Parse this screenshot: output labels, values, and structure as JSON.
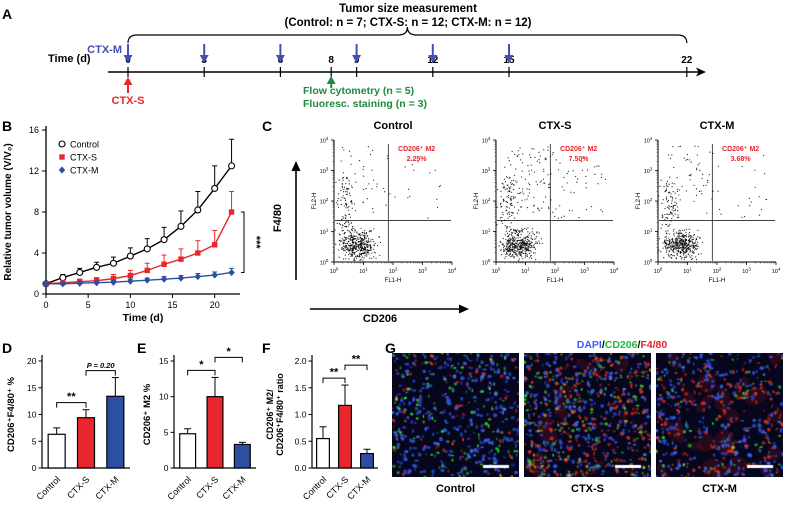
{
  "labels": {
    "A": "A",
    "B": "B",
    "C": "C",
    "D": "D",
    "E": "E",
    "F": "F",
    "G": "G"
  },
  "timeline": {
    "title_line1": "Tumor size measurement",
    "title_line2": "(Control: n = 7; CTX-S: n = 12; CTX-M: n = 12)",
    "ctx_m_label": "CTX-M",
    "ctx_s_label": "CTX-S",
    "axis_label": "Time (d)",
    "time_points": [
      0,
      3,
      6,
      8,
      9,
      12,
      15,
      22
    ],
    "ctx_m_days": [
      0,
      3,
      6,
      9,
      12,
      15
    ],
    "ctx_s_day": 0,
    "green_day": 8,
    "flow_label": "Flow cytometry (n = 5)",
    "stain_label": "Fluoresc. staining (n = 3)",
    "colors": {
      "blue": "#3f51b5",
      "red": "#e8262d",
      "green": "#1e8a3c"
    }
  },
  "flow": {
    "y_arrow_label": "F4/80",
    "x_arrow_label": "CD206",
    "y_axis": "FL2-H",
    "x_axis": "FL1-H",
    "tick_exponents": [
      0,
      1,
      2,
      3,
      4
    ],
    "annotation_color": "#e8262d",
    "plots": [
      {
        "title": "Control",
        "annotation_line1": "CD206⁺ M2",
        "annotation_line2": "2.25%"
      },
      {
        "title": "CTX-S",
        "annotation_line1": "CD206⁺ M2",
        "annotation_line2": "7.50%"
      },
      {
        "title": "CTX-M",
        "annotation_line1": "CD206⁺ M2",
        "annotation_line2": "3.68%"
      }
    ]
  },
  "microscopy": {
    "legend_dapi": "DAPI",
    "legend_cd206": "CD206",
    "legend_f480": "F4/80",
    "legend_sep": "/",
    "legend_colors": {
      "dapi": "#3b5bff",
      "cd206": "#1fbb3a",
      "f480": "#e8262d"
    },
    "images": [
      {
        "label": "Control"
      },
      {
        "label": "CTX-S"
      },
      {
        "label": "CTX-M"
      }
    ]
  },
  "chart_data": [
    {
      "id": "tumor-volume",
      "type": "line",
      "title": "",
      "xlabel": "Time (d)",
      "ylabel": "Relative tumor volume (V/V₀)",
      "xlim": [
        0,
        23
      ],
      "ylim": [
        0,
        16
      ],
      "xticks": [
        0,
        5,
        10,
        15,
        20
      ],
      "yticks": [
        0,
        4,
        8,
        12,
        16
      ],
      "x": [
        0,
        2,
        4,
        6,
        8,
        10,
        12,
        14,
        16,
        18,
        20,
        22
      ],
      "series": [
        {
          "name": "Control",
          "marker": "circle-open",
          "color": "#000000",
          "values": [
            1,
            1.6,
            2.1,
            2.6,
            3.0,
            3.7,
            4.4,
            5.3,
            6.6,
            8.2,
            10.3,
            12.5
          ],
          "errors": [
            0.2,
            0.3,
            0.4,
            0.5,
            0.6,
            0.8,
            1.0,
            1.2,
            1.5,
            1.8,
            2.2,
            2.6
          ]
        },
        {
          "name": "CTX-S",
          "marker": "square",
          "color": "#e8262d",
          "values": [
            1,
            1.1,
            1.2,
            1.3,
            1.5,
            1.8,
            2.3,
            2.9,
            3.4,
            4.0,
            4.8,
            8.0
          ],
          "errors": [
            0.15,
            0.2,
            0.25,
            0.3,
            0.4,
            0.5,
            0.7,
            0.9,
            1.0,
            1.2,
            1.4,
            2.0
          ]
        },
        {
          "name": "CTX-M",
          "marker": "diamond",
          "color": "#2d4fa2",
          "values": [
            1,
            1.0,
            1.05,
            1.1,
            1.15,
            1.25,
            1.35,
            1.45,
            1.55,
            1.7,
            1.85,
            2.1
          ],
          "errors": [
            0.1,
            0.1,
            0.1,
            0.15,
            0.15,
            0.2,
            0.2,
            0.25,
            0.25,
            0.3,
            0.3,
            0.4
          ]
        }
      ],
      "legend_position": "upper-left",
      "grid": false,
      "significance": "***"
    },
    {
      "id": "cd206-f480",
      "type": "bar",
      "categories": [
        "Control",
        "CTX-S",
        "CTX-M"
      ],
      "values": [
        6.3,
        9.4,
        13.4
      ],
      "errors": [
        1.2,
        1.5,
        3.5
      ],
      "colors": [
        "#ffffff",
        "#e8262d",
        "#2d4fa2"
      ],
      "ylabel": "CD206⁺F4/80⁺ %",
      "ylim": [
        0,
        20
      ],
      "yticks": [
        0,
        5,
        10,
        15,
        20
      ],
      "annotations": [
        {
          "label": "**",
          "pair": [
            0,
            1
          ]
        },
        {
          "label": "P = 0.20",
          "pair": [
            1,
            2
          ]
        }
      ]
    },
    {
      "id": "cd206-m2",
      "type": "bar",
      "categories": [
        "Control",
        "CTX-S",
        "CTX-M"
      ],
      "values": [
        4.8,
        10.0,
        3.3
      ],
      "errors": [
        0.7,
        2.7,
        0.3
      ],
      "colors": [
        "#ffffff",
        "#e8262d",
        "#2d4fa2"
      ],
      "ylabel": "CD206⁺ M2 %",
      "ylim": [
        0,
        15
      ],
      "yticks": [
        0,
        5,
        10,
        15
      ],
      "annotations": [
        {
          "label": "*",
          "pair": [
            0,
            1
          ]
        },
        {
          "label": "*",
          "pair": [
            1,
            2
          ]
        }
      ]
    },
    {
      "id": "m2-ratio",
      "type": "bar",
      "categories": [
        "Control",
        "CTX-S",
        "CTX-M"
      ],
      "values": [
        0.55,
        1.17,
        0.27
      ],
      "errors": [
        0.22,
        0.38,
        0.08
      ],
      "colors": [
        "#ffffff",
        "#e8262d",
        "#2d4fa2"
      ],
      "ylabel": [
        "CD206⁺ M2/",
        "CD206⁺F4/80⁺ ratio"
      ],
      "ylim": [
        0,
        2
      ],
      "yticks": [
        0,
        0.5,
        1,
        1.5,
        2
      ],
      "ytick_labels": [
        "0.0",
        "0.5",
        "1.0",
        "1.5",
        "2.0"
      ],
      "annotations": [
        {
          "label": "**",
          "pair": [
            0,
            1
          ]
        },
        {
          "label": "**",
          "pair": [
            1,
            2
          ]
        }
      ]
    }
  ]
}
